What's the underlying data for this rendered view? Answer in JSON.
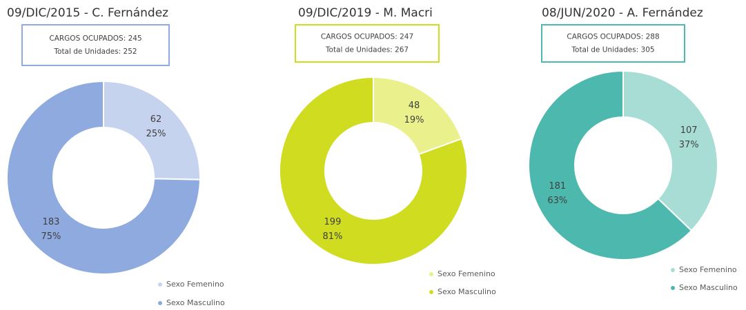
{
  "chart_data": [
    {
      "type": "donut",
      "title": "09/DIC/2015 - C. Fernández",
      "box_lines": [
        "CARGOS OCUPADOS: 245",
        "Total de Unidades: 252"
      ],
      "categories": [
        "Sexo Femenino",
        "Sexo Masculino"
      ],
      "values": [
        62,
        183
      ],
      "percent_labels": [
        "25%",
        "75%"
      ],
      "colors": [
        "#c5d3ef",
        "#8eaadf"
      ],
      "box_color": "#8eaadf"
    },
    {
      "type": "donut",
      "title": "09/DIC/2019 - M. Macri",
      "box_lines": [
        "CARGOS OCUPADOS: 247",
        "Total de Unidades: 267"
      ],
      "categories": [
        "Sexo Femenino",
        "Sexo Masculino"
      ],
      "values": [
        48,
        199
      ],
      "percent_labels": [
        "19%",
        "81%"
      ],
      "colors": [
        "#e9f08c",
        "#cfdc1f"
      ],
      "box_color": "#cfdc1f"
    },
    {
      "type": "donut",
      "title": "08/JUN/2020 - A. Fernández",
      "box_lines": [
        "CARGOS OCUPADOS: 288",
        "Total de Unidades: 305"
      ],
      "categories": [
        "Sexo Femenino",
        "Sexo Masculino"
      ],
      "values": [
        107,
        181
      ],
      "percent_labels": [
        "37%",
        "63%"
      ],
      "colors": [
        "#a8ddd6",
        "#4db8ad"
      ],
      "box_color": "#4db8ad"
    }
  ]
}
